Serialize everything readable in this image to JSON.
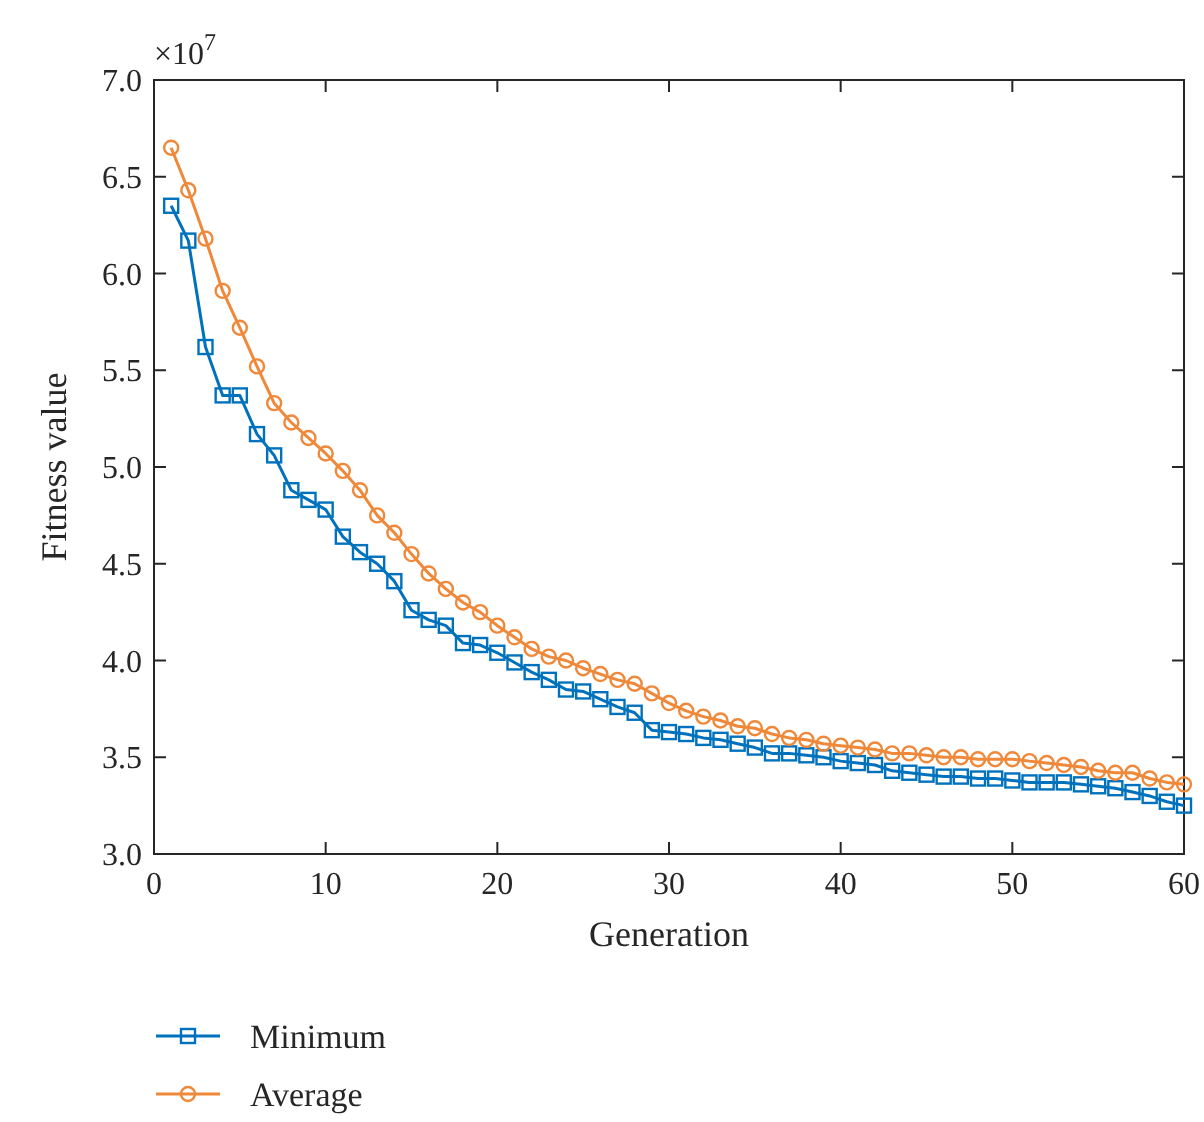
{
  "chart_data": {
    "type": "line",
    "xlabel": "Generation",
    "ylabel": "Fitness value",
    "annotations": [
      "×10$^{7}$"
    ],
    "x": [
      1,
      2,
      3,
      4,
      5,
      6,
      7,
      8,
      9,
      10,
      11,
      12,
      13,
      14,
      15,
      16,
      17,
      18,
      19,
      20,
      21,
      22,
      23,
      24,
      25,
      26,
      27,
      28,
      29,
      30,
      31,
      32,
      33,
      34,
      35,
      36,
      37,
      38,
      39,
      40,
      41,
      42,
      43,
      44,
      45,
      46,
      47,
      48,
      49,
      50,
      51,
      52,
      53,
      54,
      55,
      56,
      57,
      58,
      59,
      60
    ],
    "series": [
      {
        "name": "Minimum",
        "color": "#0072bd",
        "marker": "square",
        "values": [
          6.35,
          6.17,
          5.62,
          5.37,
          5.37,
          5.17,
          5.06,
          4.88,
          4.83,
          4.78,
          4.64,
          4.56,
          4.5,
          4.41,
          4.26,
          4.21,
          4.18,
          4.09,
          4.08,
          4.04,
          3.99,
          3.94,
          3.9,
          3.85,
          3.84,
          3.8,
          3.76,
          3.73,
          3.64,
          3.63,
          3.62,
          3.6,
          3.59,
          3.57,
          3.55,
          3.52,
          3.52,
          3.51,
          3.5,
          3.48,
          3.47,
          3.46,
          3.43,
          3.42,
          3.41,
          3.4,
          3.4,
          3.39,
          3.39,
          3.38,
          3.37,
          3.37,
          3.37,
          3.36,
          3.35,
          3.34,
          3.32,
          3.3,
          3.27,
          3.25
        ]
      },
      {
        "name": "Average",
        "color": "#f0883a",
        "marker": "circle",
        "values": [
          6.65,
          6.43,
          6.18,
          5.91,
          5.72,
          5.52,
          5.33,
          5.23,
          5.15,
          5.07,
          4.98,
          4.88,
          4.75,
          4.66,
          4.55,
          4.45,
          4.37,
          4.3,
          4.25,
          4.18,
          4.12,
          4.06,
          4.02,
          4.0,
          3.96,
          3.93,
          3.9,
          3.88,
          3.83,
          3.78,
          3.74,
          3.71,
          3.69,
          3.66,
          3.65,
          3.62,
          3.6,
          3.59,
          3.57,
          3.56,
          3.55,
          3.54,
          3.52,
          3.52,
          3.51,
          3.5,
          3.5,
          3.49,
          3.49,
          3.49,
          3.48,
          3.47,
          3.46,
          3.45,
          3.43,
          3.42,
          3.42,
          3.39,
          3.37,
          3.36
        ]
      }
    ],
    "xlim": [
      0,
      60
    ],
    "xticks": [
      0,
      10,
      20,
      30,
      40,
      50,
      60
    ],
    "ylim": [
      3,
      7
    ],
    "yticks": [
      {
        "value": 3,
        "label": "3.0"
      },
      {
        "value": 3.5,
        "label": "3.5"
      },
      {
        "value": 4,
        "label": "4.0"
      },
      {
        "value": 4.5,
        "label": "4.5"
      },
      {
        "value": 5,
        "label": "5.0"
      },
      {
        "value": 5.5,
        "label": "5.5"
      },
      {
        "value": 6,
        "label": "6.0"
      },
      {
        "value": 6.5,
        "label": "6.5"
      },
      {
        "value": 7,
        "label": "7.0"
      }
    ],
    "grid": false,
    "legend": "bottom left"
  }
}
